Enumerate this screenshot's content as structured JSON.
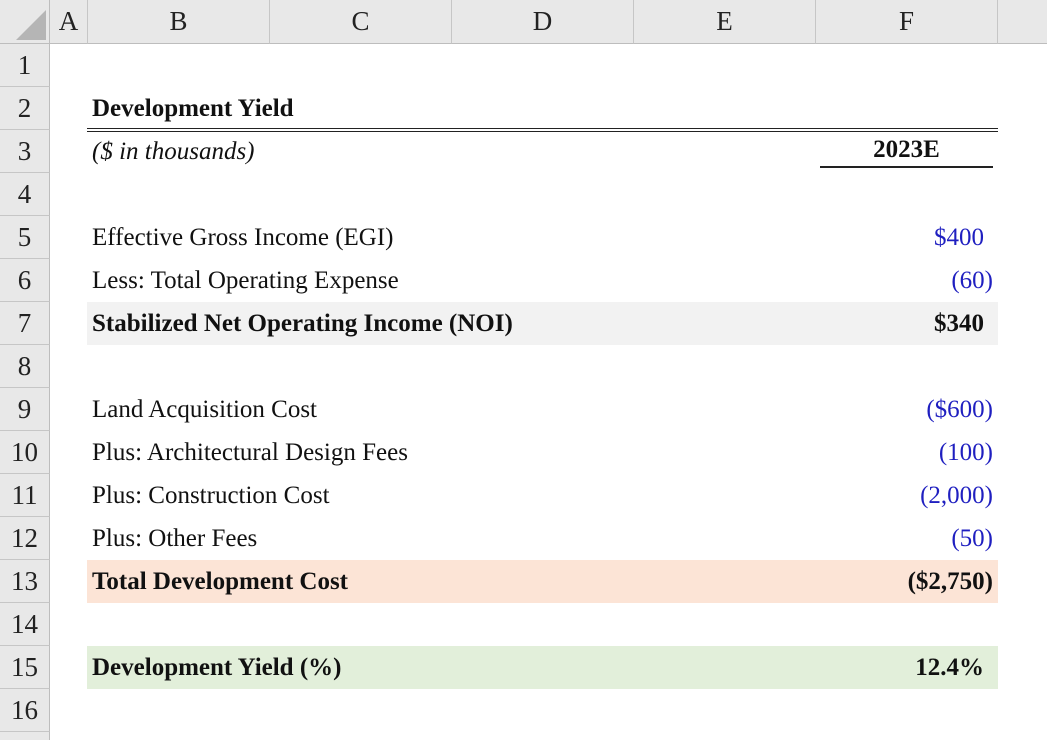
{
  "columns": [
    "A",
    "B",
    "C",
    "D",
    "E",
    "F"
  ],
  "rows": [
    "1",
    "2",
    "3",
    "4",
    "5",
    "6",
    "7",
    "8",
    "9",
    "10",
    "11",
    "12",
    "13",
    "14",
    "15",
    "16"
  ],
  "title": "Development Yield",
  "units": "($ in thousands)",
  "year_header": "2023E",
  "lines": {
    "egi": {
      "label": "Effective Gross Income (EGI)",
      "value": "$400"
    },
    "opex": {
      "label": "Less: Total Operating Expense",
      "value": "(60)"
    },
    "noi": {
      "label": "Stabilized Net Operating Income (NOI)",
      "value": "$340"
    },
    "land": {
      "label": "Land Acquisition Cost",
      "value": "($600)"
    },
    "arch": {
      "label": "Plus: Architectural Design Fees",
      "value": "(100)"
    },
    "construction": {
      "label": "Plus: Construction Cost",
      "value": "(2,000)"
    },
    "other": {
      "label": "Plus: Other Fees",
      "value": "(50)"
    },
    "tdc": {
      "label": "Total Development Cost",
      "value": "($2,750)"
    },
    "yield": {
      "label": "Development Yield (%)",
      "value": "12.4%"
    }
  },
  "colors": {
    "input_blue": "#1f1fc0",
    "noi_fill": "#f2f2f2",
    "tdc_fill": "#fce4d6",
    "yield_fill": "#e2efda",
    "header_fill": "#e8e8e8"
  }
}
